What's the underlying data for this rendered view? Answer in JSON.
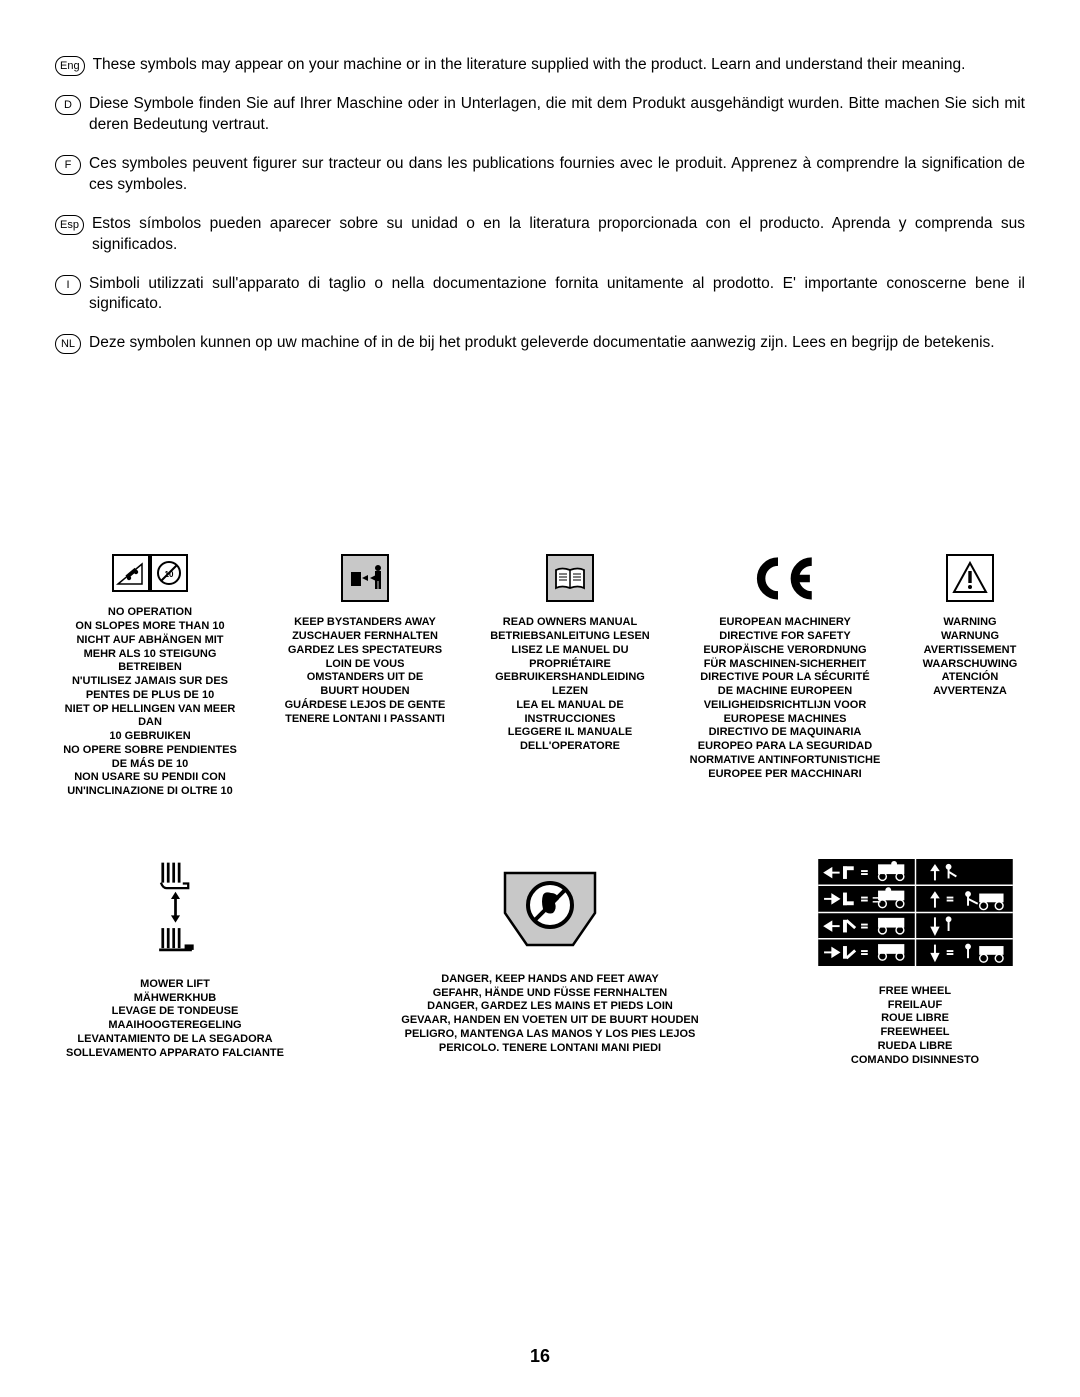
{
  "intro": [
    {
      "code": "Eng",
      "text": "These symbols may appear on your machine or in the literature supplied with the product.  Learn and understand their meaning."
    },
    {
      "code": "D",
      "text": "Diese Symbole finden Sie auf Ihrer Maschine oder in Unterlagen, die mit dem Produkt ausgehändigt wurden.  Bitte machen Sie sich mit deren Bedeutung vertraut."
    },
    {
      "code": "F",
      "text": "Ces symboles peuvent figurer sur tracteur ou dans les publications fournies avec le produit. Apprenez à comprendre la signification de ces symboles."
    },
    {
      "code": "Esp",
      "text": "Estos símbolos pueden aparecer sobre su unidad o en la literatura proporcionada con el producto.  Aprenda y comprenda sus significados."
    },
    {
      "code": "I",
      "text": "Simboli utilizzati sull'apparato di taglio o nella documentazione fornita unitamente al prodotto. E' importante conoscerne bene il significato."
    },
    {
      "code": "NL",
      "text": "Deze symbolen kunnen op uw machine of in de bij het produkt geleverde documentatie aanwezig zijn.  Lees en begrijp de betekenis."
    }
  ],
  "row1": {
    "slope": {
      "lines": [
        "NO OPERATION",
        "ON SLOPES MORE THAN 10",
        "NICHT AUF ABHÄNGEN MIT",
        "MEHR ALS 10  STEIGUNG BETREIBEN",
        "N'UTILISEZ JAMAIS SUR DES",
        "PENTES DE PLUS DE 10",
        "NIET OP HELLINGEN VAN MEER DAN",
        "10  GEBRUIKEN",
        "NO OPERE SOBRE PENDIENTES",
        "DE MÁS DE 10",
        "NON USARE SU PENDII CON",
        "UN'INCLINAZIONE DI OLTRE 10"
      ]
    },
    "bystanders": {
      "lines": [
        "KEEP BYSTANDERS AWAY",
        "ZUSCHAUER FERNHALTEN",
        "GARDEZ LES SPECTATEURS",
        "LOIN DE VOUS",
        "OMSTANDERS UIT DE",
        "BUURT HOUDEN",
        "GUÁRDESE LEJOS DE GENTE",
        "TENERE LONTANI I PASSANTI"
      ]
    },
    "manual": {
      "lines": [
        "READ OWNERS MANUAL",
        "BETRIEBSANLEITUNG LESEN",
        "LISEZ LE MANUEL DU",
        "PROPRIÉTAIRE",
        "GEBRUIKERSHANDLEIDING",
        "LEZEN",
        "LEA EL MANUAL DE",
        "INSTRUCCIONES",
        "LEGGERE IL MANUALE",
        "DELL'OPERATORE"
      ]
    },
    "ce": {
      "lines": [
        "EUROPEAN MACHINERY",
        "DIRECTIVE FOR SAFETY",
        "EUROPÄISCHE VERORDNUNG",
        "FÜR MASCHINEN-SICHERHEIT",
        "DIRECTIVE POUR LA SÉCURITÉ",
        "DE MACHINE EUROPEEN",
        "VEILIGHEIDSRICHTLIJN VOOR",
        "EUROPESE MACHINES",
        "DIRECTIVO DE MAQUINARIA",
        "EUROPEO PARA LA SEGURIDAD",
        "NORMATIVE ANTINFORTUNISTICHE",
        "EUROPEE PER MACCHINARI"
      ]
    },
    "warning": {
      "lines": [
        "WARNING",
        "WARNUNG",
        "AVERTISSEMENT",
        "WAARSCHUWING",
        "ATENCIÓN",
        "AVVERTENZA"
      ]
    }
  },
  "row2": {
    "mowerlift": {
      "lines": [
        "MOWER LIFT",
        "MÄHWERKHUB",
        "LEVAGE DE TONDEUSE",
        "MAAIHOOGTEREGELING",
        "LEVANTAMIENTO DE LA SEGADORA",
        "SOLLEVAMENTO APPARATO FALCIANTE"
      ]
    },
    "danger": {
      "lines": [
        "DANGER, KEEP HANDS AND FEET AWAY",
        "GEFAHR, HÄNDE UND FÜSSE FERNHALTEN",
        "DANGER, GARDEZ LES MAINS ET PIEDS LOIN",
        "GEVAAR, HANDEN EN VOETEN UIT DE BUURT HOUDEN",
        "PELIGRO, MANTENGA LAS MANOS Y LOS PIES LEJOS",
        "PERICOLO. TENERE LONTANI MANI PIEDI"
      ]
    },
    "freewheel": {
      "lines": [
        "FREE WHEEL",
        "FREILAUF",
        "ROUE LIBRE",
        "FREEWHEEL",
        "RUEDA LIBRE",
        "COMANDO DISINNESTO"
      ]
    }
  },
  "page_number": "16",
  "colors": {
    "text": "#000000",
    "bg": "#ffffff",
    "grey": "#c8c8c8"
  }
}
